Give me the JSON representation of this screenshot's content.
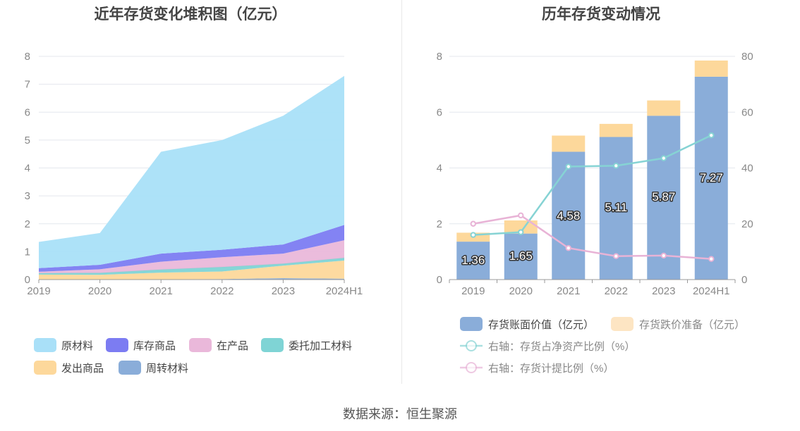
{
  "footer": {
    "source_label": "数据来源：",
    "source_name": "恒生聚源"
  },
  "chart_data": [
    {
      "type": "area",
      "stacked": true,
      "title": "近年存货变化堆积图（亿元）",
      "categories": [
        "2019",
        "2020",
        "2021",
        "2022",
        "2023",
        "2024H1"
      ],
      "ylim": [
        0,
        8
      ],
      "yticks": [
        0,
        1,
        2,
        3,
        4,
        5,
        6,
        7,
        8
      ],
      "grid": true,
      "legend_position": "bottom",
      "series": [
        {
          "name": "周转材料",
          "color": "#8aadd9",
          "values": [
            0.0,
            0.0,
            0.01,
            0.02,
            0.05,
            0.03
          ]
        },
        {
          "name": "发出商品",
          "color": "#fdd89b",
          "values": [
            0.18,
            0.17,
            0.24,
            0.27,
            0.45,
            0.65
          ]
        },
        {
          "name": "委托加工材料",
          "color": "#7fd4d5",
          "values": [
            0.05,
            0.07,
            0.11,
            0.16,
            0.07,
            0.1
          ]
        },
        {
          "name": "在产品",
          "color": "#eab8da",
          "values": [
            0.05,
            0.13,
            0.28,
            0.35,
            0.36,
            0.63
          ]
        },
        {
          "name": "库存商品",
          "color": "#7c7cf2",
          "values": [
            0.13,
            0.16,
            0.29,
            0.27,
            0.33,
            0.55
          ]
        },
        {
          "name": "原材料",
          "color": "#a9e0f8",
          "values": [
            0.94,
            1.14,
            3.65,
            3.93,
            4.61,
            5.34
          ]
        }
      ],
      "legend_order": [
        "原材料",
        "库存商品",
        "在产品",
        "委托加工材料",
        "发出商品",
        "周转材料"
      ]
    },
    {
      "type": "bar",
      "stacked": true,
      "title": "历年存货变动情况",
      "categories": [
        "2019",
        "2020",
        "2021",
        "2022",
        "2023",
        "2024H1"
      ],
      "ylim": [
        0,
        8
      ],
      "yticks": [
        0,
        2,
        4,
        6,
        8
      ],
      "y2lim": [
        0,
        80
      ],
      "y2ticks": [
        0,
        20,
        40,
        60,
        80
      ],
      "grid": true,
      "legend_position": "bottom",
      "series": [
        {
          "name": "存货账面价值（亿元）",
          "color": "#8aadd9",
          "values": [
            1.36,
            1.65,
            4.58,
            5.11,
            5.87,
            7.27
          ],
          "labels": [
            "1.36",
            "1.65",
            "4.58",
            "5.11",
            "5.87",
            "7.27"
          ]
        },
        {
          "name": "存货跌价准备（亿元）",
          "color": "#fdd89b",
          "values": [
            0.32,
            0.47,
            0.58,
            0.47,
            0.55,
            0.58
          ]
        }
      ],
      "line_series": [
        {
          "name": "右轴：存货占净资产比例（%）",
          "axis": "right",
          "color": "#86d3d4",
          "values": [
            16.0,
            17.0,
            40.5,
            40.8,
            43.5,
            51.7
          ]
        },
        {
          "name": "右轴：存货计提比例（%）",
          "axis": "right",
          "color": "#e8b3d6",
          "values": [
            20.0,
            23.0,
            11.3,
            8.4,
            8.6,
            7.4
          ]
        }
      ]
    }
  ]
}
